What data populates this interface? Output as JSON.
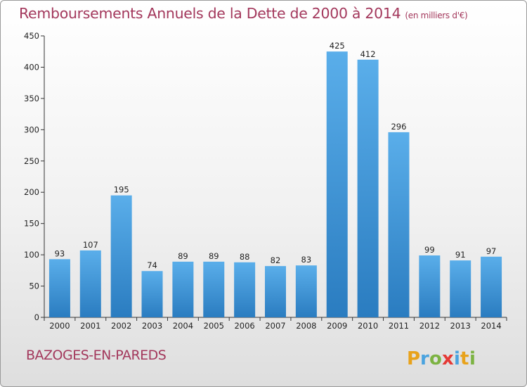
{
  "title": "Remboursements Annuels de la Dette de 2000 à 2014",
  "unit": "(en milliers d'€)",
  "commune": "BAZOGES-EN-PAREDS",
  "logo_text": "Proxiti",
  "colors": {
    "title": "#a3385c",
    "bar_top": "#5aaeea",
    "bar_bottom": "#2a7cc0"
  },
  "chart_data": {
    "type": "bar",
    "categories": [
      "2000",
      "2001",
      "2002",
      "2003",
      "2004",
      "2005",
      "2006",
      "2007",
      "2008",
      "2009",
      "2010",
      "2011",
      "2012",
      "2013",
      "2014"
    ],
    "values": [
      93,
      107,
      195,
      74,
      89,
      89,
      88,
      82,
      83,
      425,
      412,
      296,
      99,
      91,
      97
    ],
    "title": "Remboursements Annuels de la Dette de 2000 à 2014",
    "subtitle": "(en milliers d'€)",
    "ylim": [
      0,
      450
    ],
    "yticks": [
      0,
      50,
      100,
      150,
      200,
      250,
      300,
      350,
      400,
      450
    ],
    "grid": false,
    "data_labels": true
  }
}
